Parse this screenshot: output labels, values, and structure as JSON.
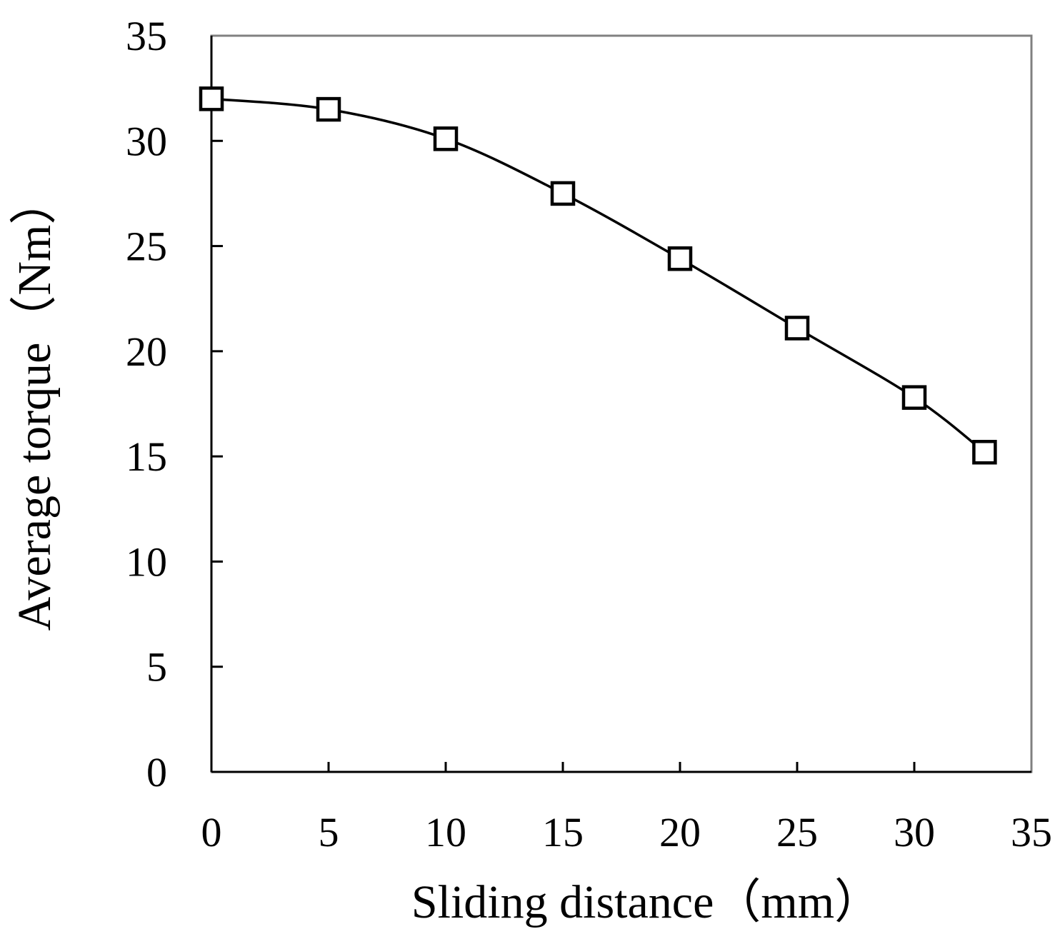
{
  "chart_data": {
    "type": "line",
    "title": "",
    "xlabel": "Sliding distance（mm）",
    "ylabel": "Average torque（Nm）",
    "xlim": [
      0,
      35
    ],
    "ylim": [
      0,
      35
    ],
    "x_ticks": [
      "0",
      "5",
      "10",
      "15",
      "20",
      "25",
      "30",
      "35"
    ],
    "y_ticks": [
      "0",
      "5",
      "10",
      "15",
      "20",
      "25",
      "30",
      "35"
    ],
    "grid": false,
    "legend": "none",
    "marker": "open-square",
    "line_style": "smooth",
    "line_color": "#000000",
    "series": [
      {
        "x": [
          0,
          5,
          10,
          15,
          20,
          25,
          30,
          33
        ],
        "y": [
          32.0,
          31.5,
          30.1,
          27.5,
          24.4,
          21.1,
          17.8,
          15.2
        ]
      }
    ]
  }
}
